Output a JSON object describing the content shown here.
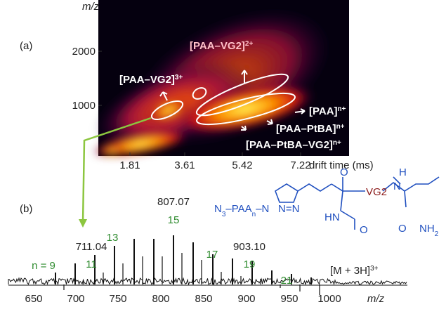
{
  "panel_a": {
    "label": "(a)",
    "y_axis_label": "m/z",
    "y_ticks": [
      "2000",
      "1000"
    ],
    "x_ticks": [
      "1.81",
      "3.61",
      "5.42",
      "7.22"
    ],
    "x_axis_label": "drift time (ms)",
    "annotations": [
      {
        "text": "[PAA–VG2]",
        "sup": "3+"
      },
      {
        "text": "[PAA–VG2]",
        "sup": "2+"
      },
      {
        "text": "[PAA]",
        "sup": "n+"
      },
      {
        "text": "[PAA–PtBA]",
        "sup": "n+"
      },
      {
        "text": "[PAA–PtBA–VG2]",
        "sup": "n+"
      }
    ]
  },
  "panel_b": {
    "label": "(b)",
    "x_ticks": [
      "650",
      "700",
      "750",
      "800",
      "850",
      "900",
      "950",
      "1000"
    ],
    "x_axis_label": "m/z",
    "peak_labels": [
      "807.07",
      "711.04",
      "903.10"
    ],
    "charge_labels": [
      "n = 9",
      "11",
      "13",
      "15",
      "17",
      "19",
      "21"
    ],
    "ion_label": {
      "text": "[M + 3H]",
      "sup": "3+"
    },
    "structure": {
      "azide": "N",
      "azide_sub": "3",
      "polymer": "–PAA",
      "polymer_sub": "n",
      "link": "–N",
      "triazole": "N=N",
      "oxygen1": "O",
      "vg2": "VG2",
      "nh": "H",
      "n2": "N",
      "hn": "HN",
      "oxygen2": "O",
      "oxygen3": "O",
      "amide": "NH",
      "amide_sub": "2"
    }
  }
}
